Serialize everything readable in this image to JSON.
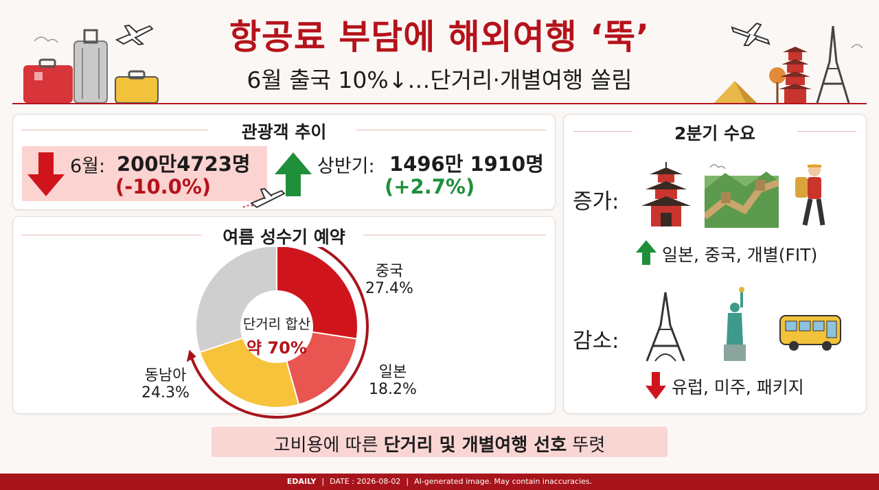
{
  "header": {
    "title": "항공료 부담에 해외여행 ‘뚝’",
    "subtitle": "6월 출국 10%↓…단거리·개별여행 쏠림"
  },
  "trend": {
    "heading": "관광객 추이",
    "june_label": "6월:",
    "june_value": "200만4723명",
    "june_change": "(-10.0%)",
    "half_label": "상반기:",
    "half_value": "1496만 1910명",
    "half_change": "(+2.7%)"
  },
  "summer": {
    "heading": "여름 성수기 예약",
    "center_line1": "단거리 합산",
    "center_line2": "약 70%"
  },
  "chart_data": {
    "type": "pie",
    "slices": [
      {
        "label": "중국",
        "value": 27.4,
        "value_text": "27.4%",
        "color": "#d0141b"
      },
      {
        "label": "일본",
        "value": 18.2,
        "value_text": "18.2%",
        "color": "#e95550"
      },
      {
        "label": "동남아",
        "value": 24.3,
        "value_text": "24.3%",
        "color": "#f6c33a"
      },
      {
        "label": "",
        "value": 30.1,
        "value_text": "",
        "color": "#cfcfcf"
      }
    ]
  },
  "demand": {
    "heading": "2분기 수요",
    "increase_label": "증가:",
    "increase_text": "일본, 중국, 개별(FIT)",
    "decrease_label": "감소:",
    "decrease_text": "유럽, 미주, 패키지"
  },
  "bottom": {
    "text_prefix": "고비용에 따른 ",
    "text_bold": "단거리 및 개별여행 선호",
    "text_suffix": " 뚜렷"
  },
  "footer": {
    "brand": "EDAILY",
    "date": "DATE : 2026-08-02",
    "note": "AI-generated image. May contain inaccuracies."
  },
  "colors": {
    "brand_red": "#b5121b",
    "up_green": "#1f8f3a",
    "down_red": "#d0141b"
  }
}
